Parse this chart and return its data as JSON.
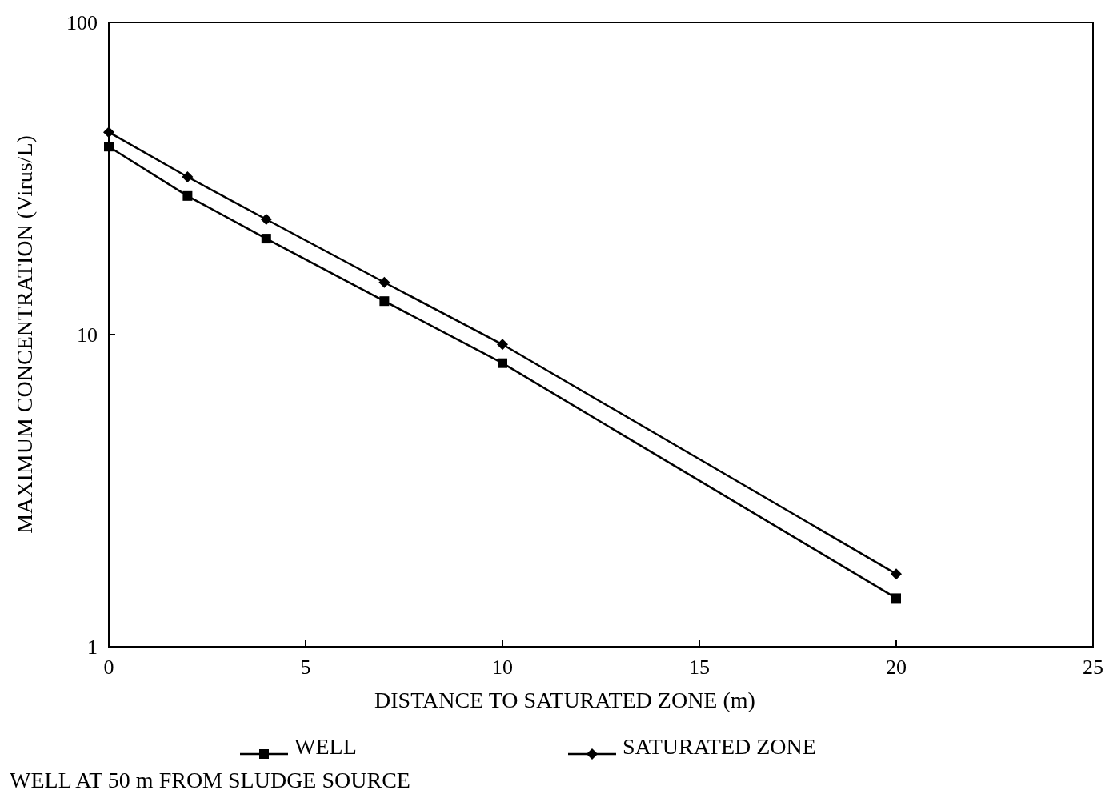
{
  "chart_data": {
    "type": "line",
    "xlabel": "DISTANCE TO SATURATED ZONE (m)",
    "ylabel": "MAXIMUM CONCENTRATION (Virus/L)",
    "log": "y",
    "xlim": [
      0,
      25
    ],
    "xticks": [
      0,
      5,
      10,
      15,
      20,
      25
    ],
    "ylim": [
      1,
      100
    ],
    "yticks": [
      1,
      10,
      100
    ],
    "x": [
      0,
      2,
      4,
      7,
      10,
      20
    ],
    "legend": "bottom",
    "grid": false,
    "series": [
      {
        "name": "WELL",
        "color": "#000000",
        "marker": "square",
        "values": [
          40,
          27.8,
          20.3,
          12.8,
          8.1,
          1.43
        ]
      },
      {
        "name": "SATURATED ZONE",
        "color": "#000000",
        "marker": "diamond",
        "values": [
          44.5,
          32,
          23.4,
          14.7,
          9.3,
          1.71
        ]
      }
    ],
    "annotations": [
      "WELL AT 50 m FROM SLUDGE SOURCE"
    ]
  }
}
